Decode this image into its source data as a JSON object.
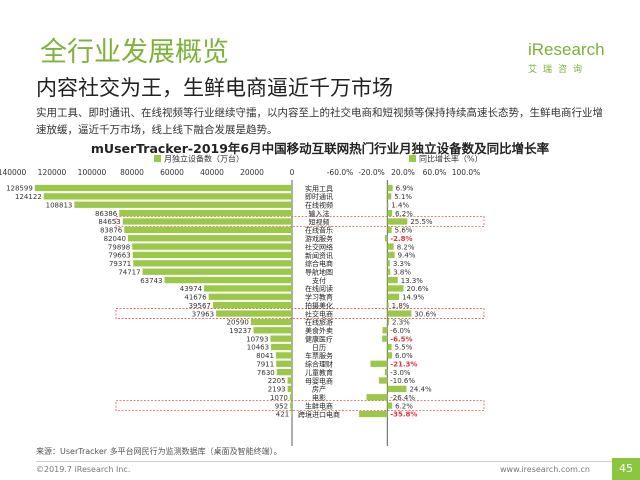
{
  "header": {
    "section_title": "全行业发展概览",
    "headline": "内容社交为王，生鲜电商逼近千万市场",
    "summary": "实用工具、即时通讯、在线视频等行业继续守擂，以内容至上的社交电商和短视频等保持持续高速长态势，生鲜电商行业增速放缓，逼近千万市场，线上线下融合发展是趋势。"
  },
  "logo": {
    "name": "iResearch",
    "sub": "艾瑞咨询"
  },
  "colors": {
    "accent": "#8cc63f",
    "bar": "#9cc84a",
    "negative": "#e0343f",
    "highlight_border": "#e05a5a"
  },
  "chart_data": {
    "type": "bar",
    "title": "mUserTracker-2019年6月中国移动互联网热门行业月独立设备数及同比增长率",
    "left_legend": "月独立设备数（万台）",
    "right_legend": "同比增长率（%）",
    "left_axis_ticks": [
      "140000",
      "120000",
      "100000",
      "80000",
      "60000",
      "40000",
      "20000",
      "0"
    ],
    "right_axis_ticks": [
      "-60.0%",
      "-20.0%",
      "20.0%",
      "60.0%",
      "100.0%"
    ],
    "left_xlim": [
      0,
      140000
    ],
    "right_xlim": [
      -60,
      100
    ],
    "categories": [
      "实用工具",
      "即时通讯",
      "在线视频",
      "输入法",
      "短视频",
      "在线音乐",
      "游戏服务",
      "社交网络",
      "新闻资讯",
      "综合电商",
      "导航地图",
      "支付",
      "在线阅读",
      "学习教育",
      "拍摄美化",
      "社交电商",
      "在线旅游",
      "美食外卖",
      "健康医疗",
      "日历",
      "车票服务",
      "综合理财",
      "儿童教育",
      "母婴电商",
      "房产",
      "电影",
      "生鲜电商",
      "跨境进口电商"
    ],
    "devices": [
      128599,
      124122,
      108813,
      86386,
      84653,
      83876,
      82040,
      79898,
      79663,
      79371,
      74717,
      63743,
      43974,
      41676,
      39567,
      37963,
      20590,
      19237,
      10793,
      10463,
      8041,
      7911,
      7630,
      2205,
      2193,
      1070,
      952,
      421
    ],
    "device_labels": [
      "128599",
      "124122",
      "108813",
      "86386",
      "84653",
      "83876",
      "82040",
      "79898",
      "79663",
      "79371",
      "74717",
      "63743",
      "43974",
      "41676",
      "39567",
      "37963",
      "20590",
      "19237",
      "10793",
      "10463",
      "8041",
      "7911",
      "7630",
      "2205",
      "2193",
      "1070",
      "952",
      "421"
    ],
    "growth": [
      6.9,
      5.1,
      1.4,
      6.2,
      25.5,
      5.6,
      -2.8,
      8.2,
      9.4,
      3.3,
      3.8,
      13.3,
      20.6,
      14.9,
      1.8,
      30.6,
      2.3,
      -6.0,
      -6.5,
      5.5,
      6.0,
      -21.3,
      -3.0,
      -10.6,
      24.4,
      -26.4,
      6.2,
      -35.8
    ],
    "growth_labels": [
      "6.9%",
      "5.1%",
      "1.4%",
      "6.2%",
      "25.5%",
      "5.6%",
      "-2.8%",
      "8.2%",
      "9.4%",
      "3.3%",
      "3.8%",
      "13.3%",
      "20.6%",
      "14.9%",
      "1.8%",
      "30.6%",
      "2.3%",
      "-6.0%",
      "-6.5%",
      "5.5%",
      "6.0%",
      "-21.3%",
      "-3.0%",
      "-10.6%",
      "24.4%",
      "-26.4%",
      "6.2%",
      "-35.8%"
    ],
    "growth_label_red": [
      false,
      false,
      false,
      false,
      false,
      false,
      true,
      false,
      false,
      false,
      false,
      false,
      false,
      false,
      false,
      false,
      false,
      false,
      true,
      false,
      false,
      true,
      false,
      false,
      false,
      false,
      false,
      true
    ],
    "highlighted": [
      4,
      15,
      26
    ]
  },
  "footer": {
    "source": "来源：UserTracker 多平台网民行为监测数据库（桌面及智能终端）。",
    "copyright": "©2019.7 iResearch Inc.",
    "site": "www.iresearch.com.cn",
    "page": "45"
  }
}
